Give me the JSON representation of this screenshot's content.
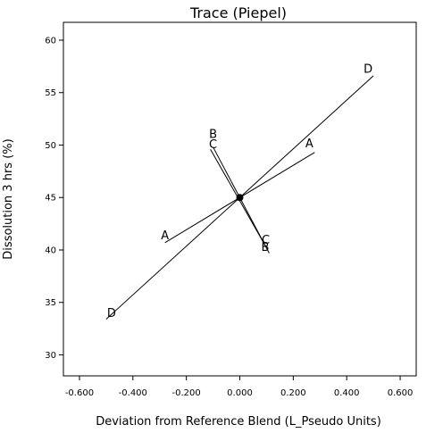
{
  "chart_data": {
    "type": "line",
    "title": "Trace (Piepel)",
    "xlabel": "Deviation from Reference Blend (L_Pseudo Units)",
    "ylabel": "Dissolution 3 hrs (%)",
    "xlim": [
      -0.66,
      0.66
    ],
    "ylim": [
      28.0,
      61.7
    ],
    "x_ticks": [
      -0.6,
      -0.4,
      -0.2,
      0.0,
      0.2,
      0.4,
      0.6
    ],
    "x_tick_labels": [
      "-0.600",
      "-0.400",
      "-0.200",
      "0.000",
      "0.200",
      "0.400",
      "0.600"
    ],
    "y_ticks": [
      30,
      35,
      40,
      45,
      50,
      55,
      60
    ],
    "y_tick_labels": [
      "30",
      "35",
      "40",
      "45",
      "50",
      "55",
      "60"
    ],
    "reference_point": {
      "x": 0.0,
      "y": 45.0
    },
    "series": [
      {
        "name": "A",
        "x": [
          -0.28,
          0.28
        ],
        "y": [
          40.7,
          49.3
        ],
        "end_labels": [
          {
            "text": "A",
            "x": -0.28,
            "y": 41.0
          },
          {
            "text": "A",
            "x": 0.26,
            "y": 49.8
          }
        ]
      },
      {
        "name": "B",
        "x": [
          -0.1,
          0.11
        ],
        "y": [
          49.8,
          39.7
        ],
        "end_labels": [
          {
            "text": "B",
            "x": -0.1,
            "y": 50.7
          },
          {
            "text": "B",
            "x": 0.095,
            "y": 39.9
          }
        ]
      },
      {
        "name": "C",
        "x": [
          -0.11,
          0.1
        ],
        "y": [
          49.6,
          40.2
        ],
        "end_labels": [
          {
            "text": "C",
            "x": -0.1,
            "y": 49.7
          },
          {
            "text": "C",
            "x": 0.097,
            "y": 40.6
          }
        ]
      },
      {
        "name": "D",
        "x": [
          -0.5,
          0.5
        ],
        "y": [
          33.4,
          56.6
        ],
        "end_labels": [
          {
            "text": "D",
            "x": -0.48,
            "y": 33.6
          },
          {
            "text": "D",
            "x": 0.48,
            "y": 56.9
          }
        ]
      }
    ],
    "grid": false,
    "legend": "none"
  }
}
